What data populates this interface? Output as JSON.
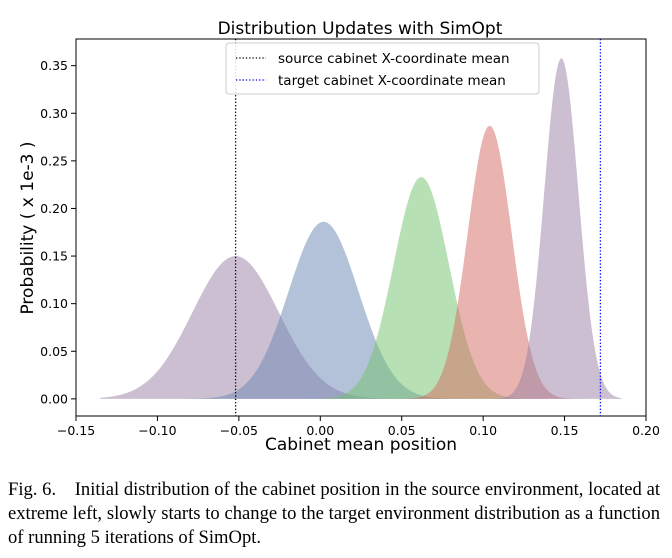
{
  "chart_data": {
    "type": "area",
    "title": "Distribution Updates with SimOpt",
    "xlabel": "Cabinet mean position",
    "ylabel": "Probability ( x 1e-3 )",
    "xlim": [
      -0.15,
      0.2
    ],
    "ylim": [
      -0.018,
      0.378
    ],
    "x_ticks": [
      -0.15,
      -0.1,
      -0.05,
      0.0,
      0.05,
      0.1,
      0.15,
      0.2
    ],
    "x_tick_labels": [
      "−0.15",
      "−0.10",
      "−0.05",
      "0.00",
      "0.05",
      "0.10",
      "0.15",
      "0.20"
    ],
    "y_ticks": [
      0.0,
      0.05,
      0.1,
      0.15,
      0.2,
      0.25,
      0.3,
      0.35
    ],
    "y_tick_labels": [
      "0.00",
      "0.05",
      "0.10",
      "0.15",
      "0.20",
      "0.25",
      "0.30",
      "0.35"
    ],
    "grid": false,
    "legend_position": "top-center",
    "series": [
      {
        "mean": -0.052,
        "sd": 0.0265,
        "peak": 0.15,
        "color": "#9a7fa3",
        "opacity": 0.5
      },
      {
        "mean": 0.002,
        "sd": 0.0215,
        "peak": 0.186,
        "color": "#6a85b3",
        "opacity": 0.5
      },
      {
        "mean": 0.062,
        "sd": 0.017,
        "peak": 0.233,
        "color": "#72c16c",
        "opacity": 0.5
      },
      {
        "mean": 0.104,
        "sd": 0.0135,
        "peak": 0.287,
        "color": "#d46a62",
        "opacity": 0.5
      },
      {
        "mean": 0.148,
        "sd": 0.0105,
        "peak": 0.358,
        "color": "#9a7fa3",
        "opacity": 0.5
      }
    ],
    "reference_lines": [
      {
        "name": "source cabinet X-coordinate mean",
        "x": -0.052,
        "color": "#000000",
        "style": "dotted"
      },
      {
        "name": "target cabinet X-coordinate mean",
        "x": 0.172,
        "color": "#0000ff",
        "style": "dotted"
      }
    ]
  },
  "caption": "Fig. 6. Initial distribution of the cabinet position in the source environment, located at extreme left, slowly starts to change to the target environment distribution as a function of running 5 iterations of SimOpt."
}
